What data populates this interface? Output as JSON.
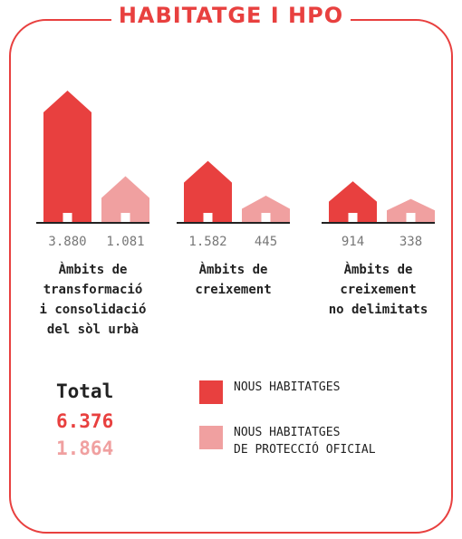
{
  "chart_data": {
    "type": "bar",
    "title": "HABITATGE I HPO",
    "categories": [
      "Àmbits de\ntransformació\ni consolidació\ndel sòl urbà",
      "Àmbits de\ncreixement",
      "Àmbits de\ncreixement\nno delimitats"
    ],
    "series": [
      {
        "name": "NOUS HABITATGES",
        "color": "#e8403f",
        "values": [
          3880,
          1582,
          914
        ],
        "value_labels": [
          "3.880",
          "1.582",
          "914"
        ]
      },
      {
        "name": "NOUS HABITATGES\nDE PROTECCIÓ OFICIAL",
        "color": "#f0a0a0",
        "values": [
          1081,
          445,
          338
        ],
        "value_labels": [
          "1.081",
          "445",
          "338"
        ]
      }
    ],
    "total": {
      "label": "Total",
      "values": [
        6376,
        1864
      ],
      "value_labels": [
        "6.376",
        "1.864"
      ]
    }
  }
}
